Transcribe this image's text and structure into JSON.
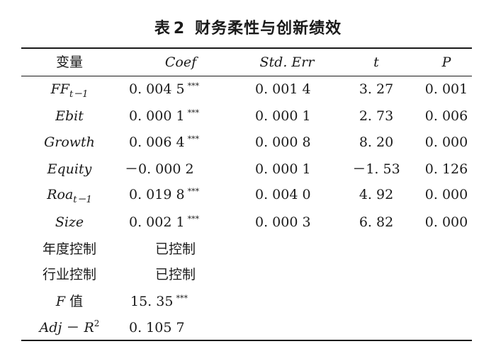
{
  "title": {
    "label": "表",
    "number": "2",
    "text": "财务柔性与创新绩效"
  },
  "headers": {
    "variable": "变量",
    "coef": "Coef",
    "se": "Std. Err",
    "t": "t",
    "p": "P"
  },
  "rows": [
    {
      "var_main": "FF",
      "var_sub": "t－1",
      "coef": "0. 004 5",
      "stars": "***",
      "se": "0. 001 4",
      "t": "3. 27",
      "p": "0. 001"
    },
    {
      "var_main": "Ebit",
      "coef": "0. 000 1",
      "stars": "***",
      "se": "0. 000 1",
      "t": "2. 73",
      "p": "0. 006"
    },
    {
      "var_main": "Growth",
      "coef": "0. 006 4",
      "stars": "***",
      "se": "0. 000 8",
      "t": "8. 20",
      "p": "0. 000"
    },
    {
      "var_main": "Equity",
      "coef": "－0. 000 2",
      "se": "0. 000 1",
      "t": "－1. 53",
      "p": "0. 126"
    },
    {
      "var_main": "Roa",
      "var_sub": "t－1",
      "coef": "0. 019 8",
      "stars": "***",
      "se": "0. 004 0",
      "t": "4. 92",
      "p": "0. 000"
    },
    {
      "var_main": "Size",
      "coef": "0. 002 1",
      "stars": "***",
      "se": "0. 000 3",
      "t": "6. 82",
      "p": "0. 000"
    }
  ],
  "controls": [
    {
      "label": "年度控制",
      "value": "已控制"
    },
    {
      "label": "行业控制",
      "value": "已控制"
    }
  ],
  "f_stat": {
    "label_italic": "F",
    "label_text": "值",
    "value": "15. 35",
    "stars": "***"
  },
  "adj_r2": {
    "label_a": "Adj",
    "label_b": "－",
    "label_c": "R",
    "label_sup": "2",
    "value": "0. 105 7"
  }
}
